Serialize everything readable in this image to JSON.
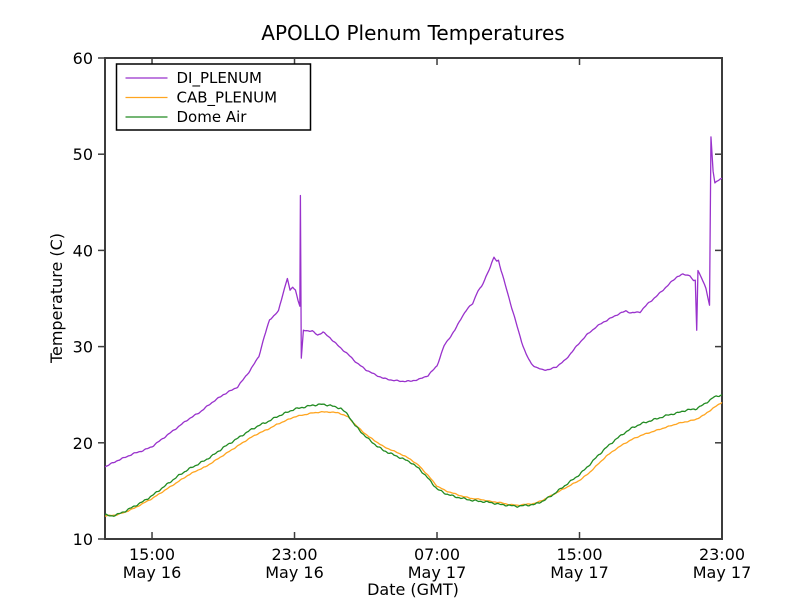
{
  "figure": {
    "background": "#ffffff",
    "axis_color": "#3c3c3c",
    "text_color": "#000000"
  },
  "chart_data": {
    "type": "line",
    "title": "APOLLO Plenum Temperatures",
    "xlabel": "Date (GMT)",
    "ylabel": "Temperature (C)",
    "x_unit": "hours since May 16 00:00 GMT",
    "xlim": [
      12.36,
      47
    ],
    "ylim": [
      10,
      60
    ],
    "grid": false,
    "legend_position": "upper-left",
    "x_ticks": [
      {
        "hour": 15,
        "time": "15:00",
        "date": "May 16"
      },
      {
        "hour": 23,
        "time": "23:00",
        "date": "May 16"
      },
      {
        "hour": 31,
        "time": "07:00",
        "date": "May 17"
      },
      {
        "hour": 39,
        "time": "15:00",
        "date": "May 17"
      },
      {
        "hour": 47,
        "time": "23:00",
        "date": "May 17"
      }
    ],
    "y_ticks": [
      10,
      20,
      30,
      40,
      50,
      60
    ],
    "series": [
      {
        "name": "DI_PLENUM",
        "color": "#9932CC",
        "noise": 0.07,
        "points": [
          [
            12.36,
            17.5
          ],
          [
            13,
            18.1
          ],
          [
            13.5,
            18.5
          ],
          [
            14,
            18.9
          ],
          [
            14.5,
            19.2
          ],
          [
            15,
            19.6
          ],
          [
            15.5,
            20.3
          ],
          [
            16,
            21.0
          ],
          [
            16.5,
            21.7
          ],
          [
            17,
            22.4
          ],
          [
            17.7,
            23.2
          ],
          [
            18.3,
            24.1
          ],
          [
            19,
            25.0
          ],
          [
            19.8,
            25.8
          ],
          [
            20.5,
            27.5
          ],
          [
            21,
            29.0
          ],
          [
            21.3,
            31.0
          ],
          [
            21.6,
            32.8
          ],
          [
            21.9,
            33.3
          ],
          [
            22.1,
            33.7
          ],
          [
            22.35,
            35.5
          ],
          [
            22.6,
            37.1
          ],
          [
            22.75,
            35.8
          ],
          [
            22.9,
            36.2
          ],
          [
            23.05,
            35.9
          ],
          [
            23.2,
            34.8
          ],
          [
            23.3,
            34.2
          ],
          [
            23.33,
            45.7
          ],
          [
            23.38,
            28.8
          ],
          [
            23.5,
            31.7
          ],
          [
            24,
            31.6
          ],
          [
            24.3,
            31.2
          ],
          [
            24.6,
            31.5
          ],
          [
            25,
            30.9
          ],
          [
            25.5,
            30.0
          ],
          [
            26,
            29.2
          ],
          [
            26.5,
            28.3
          ],
          [
            27,
            27.6
          ],
          [
            27.5,
            27.1
          ],
          [
            28,
            26.7
          ],
          [
            28.5,
            26.5
          ],
          [
            29,
            26.4
          ],
          [
            29.5,
            26.4
          ],
          [
            30,
            26.6
          ],
          [
            30.5,
            27.0
          ],
          [
            31,
            28.0
          ],
          [
            31.4,
            30.1
          ],
          [
            32,
            31.7
          ],
          [
            32.4,
            33.1
          ],
          [
            32.7,
            33.9
          ],
          [
            33,
            34.5
          ],
          [
            33.3,
            35.8
          ],
          [
            33.5,
            36.2
          ],
          [
            33.75,
            37.3
          ],
          [
            34,
            38.3
          ],
          [
            34.2,
            39.3
          ],
          [
            34.35,
            38.9
          ],
          [
            34.45,
            39.0
          ],
          [
            34.6,
            37.9
          ],
          [
            34.9,
            36.0
          ],
          [
            35.2,
            34.0
          ],
          [
            35.5,
            32.1
          ],
          [
            35.75,
            30.5
          ],
          [
            36,
            29.2
          ],
          [
            36.3,
            28.2
          ],
          [
            36.6,
            27.8
          ],
          [
            36.9,
            27.6
          ],
          [
            37.3,
            27.6
          ],
          [
            37.7,
            27.9
          ],
          [
            38.2,
            28.6
          ],
          [
            38.6,
            29.5
          ],
          [
            39,
            30.4
          ],
          [
            39.4,
            31.2
          ],
          [
            39.9,
            32.0
          ],
          [
            40.3,
            32.5
          ],
          [
            40.8,
            33.0
          ],
          [
            41.2,
            33.4
          ],
          [
            41.6,
            33.7
          ],
          [
            41.9,
            33.5
          ],
          [
            42.4,
            33.6
          ],
          [
            42.8,
            34.4
          ],
          [
            43.3,
            35.2
          ],
          [
            43.7,
            35.9
          ],
          [
            44.2,
            36.8
          ],
          [
            44.5,
            37.3
          ],
          [
            44.8,
            37.5
          ],
          [
            45.2,
            37.4
          ],
          [
            45.4,
            36.8
          ],
          [
            45.5,
            36.9
          ],
          [
            45.58,
            31.7
          ],
          [
            45.65,
            37.9
          ],
          [
            45.85,
            37.2
          ],
          [
            46.1,
            36.0
          ],
          [
            46.3,
            34.3
          ],
          [
            46.38,
            51.8
          ],
          [
            46.5,
            48.3
          ],
          [
            46.6,
            47.0
          ],
          [
            46.75,
            47.2
          ],
          [
            46.9,
            47.4
          ],
          [
            47,
            47.5
          ]
        ]
      },
      {
        "name": "CAB_PLENUM",
        "color": "#FFA520",
        "noise": 0.05,
        "points": [
          [
            12.36,
            12.4
          ],
          [
            13,
            12.5
          ],
          [
            13.5,
            12.8
          ],
          [
            14,
            13.2
          ],
          [
            14.5,
            13.7
          ],
          [
            15,
            14.2
          ],
          [
            15.5,
            14.8
          ],
          [
            16,
            15.4
          ],
          [
            16.5,
            16.0
          ],
          [
            17,
            16.6
          ],
          [
            17.5,
            17.1
          ],
          [
            18,
            17.5
          ],
          [
            18.5,
            18.1
          ],
          [
            19,
            18.7
          ],
          [
            19.5,
            19.3
          ],
          [
            20,
            19.9
          ],
          [
            20.5,
            20.5
          ],
          [
            21,
            21.0
          ],
          [
            21.5,
            21.4
          ],
          [
            22,
            21.9
          ],
          [
            22.5,
            22.3
          ],
          [
            23,
            22.7
          ],
          [
            23.5,
            22.9
          ],
          [
            24,
            23.1
          ],
          [
            24.5,
            23.2
          ],
          [
            25,
            23.2
          ],
          [
            25.5,
            23.1
          ],
          [
            26,
            22.7
          ],
          [
            26.4,
            21.9
          ],
          [
            26.8,
            21.2
          ],
          [
            27.2,
            20.6
          ],
          [
            27.6,
            20.1
          ],
          [
            28,
            19.6
          ],
          [
            28.5,
            19.2
          ],
          [
            29,
            18.8
          ],
          [
            29.5,
            18.3
          ],
          [
            30,
            17.6
          ],
          [
            30.5,
            16.6
          ],
          [
            31,
            15.5
          ],
          [
            31.5,
            15.0
          ],
          [
            32,
            14.7
          ],
          [
            32.5,
            14.4
          ],
          [
            33,
            14.2
          ],
          [
            33.5,
            14.1
          ],
          [
            34,
            13.9
          ],
          [
            34.5,
            13.8
          ],
          [
            35,
            13.6
          ],
          [
            35.5,
            13.5
          ],
          [
            36,
            13.6
          ],
          [
            36.5,
            13.7
          ],
          [
            37,
            14.1
          ],
          [
            37.5,
            14.6
          ],
          [
            38,
            15.1
          ],
          [
            38.5,
            15.6
          ],
          [
            39,
            16.1
          ],
          [
            39.5,
            16.8
          ],
          [
            40,
            17.7
          ],
          [
            40.5,
            18.6
          ],
          [
            41,
            19.3
          ],
          [
            41.5,
            19.9
          ],
          [
            42,
            20.4
          ],
          [
            42.5,
            20.8
          ],
          [
            43,
            21.1
          ],
          [
            43.5,
            21.4
          ],
          [
            44,
            21.7
          ],
          [
            44.5,
            22.0
          ],
          [
            45,
            22.2
          ],
          [
            45.5,
            22.4
          ],
          [
            46,
            22.9
          ],
          [
            46.5,
            23.6
          ],
          [
            47,
            24.2
          ]
        ]
      },
      {
        "name": "Dome Air",
        "color": "#228B22",
        "noise": 0.1,
        "points": [
          [
            12.36,
            12.5
          ],
          [
            12.7,
            12.4
          ],
          [
            13,
            12.5
          ],
          [
            13.5,
            12.9
          ],
          [
            14,
            13.4
          ],
          [
            14.5,
            13.9
          ],
          [
            15,
            14.5
          ],
          [
            15.5,
            15.2
          ],
          [
            16,
            15.9
          ],
          [
            16.5,
            16.6
          ],
          [
            17,
            17.2
          ],
          [
            17.5,
            17.7
          ],
          [
            18,
            18.2
          ],
          [
            18.5,
            18.8
          ],
          [
            19,
            19.5
          ],
          [
            19.5,
            20.1
          ],
          [
            20,
            20.7
          ],
          [
            20.5,
            21.3
          ],
          [
            21,
            21.8
          ],
          [
            21.5,
            22.2
          ],
          [
            22,
            22.7
          ],
          [
            22.5,
            23.1
          ],
          [
            23,
            23.5
          ],
          [
            23.5,
            23.7
          ],
          [
            24,
            23.9
          ],
          [
            24.5,
            24.0
          ],
          [
            25,
            23.9
          ],
          [
            25.3,
            23.7
          ],
          [
            25.6,
            23.6
          ],
          [
            26,
            22.9
          ],
          [
            26.4,
            21.8
          ],
          [
            26.8,
            21.0
          ],
          [
            27.2,
            20.3
          ],
          [
            27.6,
            19.7
          ],
          [
            28,
            19.2
          ],
          [
            28.5,
            18.8
          ],
          [
            29,
            18.4
          ],
          [
            29.5,
            18.0
          ],
          [
            30,
            17.3
          ],
          [
            30.5,
            16.3
          ],
          [
            31,
            15.2
          ],
          [
            31.5,
            14.7
          ],
          [
            32,
            14.4
          ],
          [
            32.5,
            14.2
          ],
          [
            33,
            14.0
          ],
          [
            33.5,
            13.9
          ],
          [
            34,
            13.8
          ],
          [
            34.5,
            13.6
          ],
          [
            35,
            13.5
          ],
          [
            35.5,
            13.4
          ],
          [
            36,
            13.5
          ],
          [
            36.5,
            13.6
          ],
          [
            37,
            14.0
          ],
          [
            37.5,
            14.6
          ],
          [
            38,
            15.3
          ],
          [
            38.5,
            16.0
          ],
          [
            39,
            16.7
          ],
          [
            39.5,
            17.6
          ],
          [
            40,
            18.6
          ],
          [
            40.5,
            19.5
          ],
          [
            41,
            20.3
          ],
          [
            41.5,
            21.0
          ],
          [
            42,
            21.6
          ],
          [
            42.5,
            22.0
          ],
          [
            43,
            22.3
          ],
          [
            43.5,
            22.6
          ],
          [
            44,
            22.9
          ],
          [
            44.5,
            23.1
          ],
          [
            45,
            23.4
          ],
          [
            45.5,
            23.5
          ],
          [
            46,
            24.0
          ],
          [
            46.5,
            24.7
          ],
          [
            47,
            25.0
          ]
        ]
      }
    ]
  }
}
